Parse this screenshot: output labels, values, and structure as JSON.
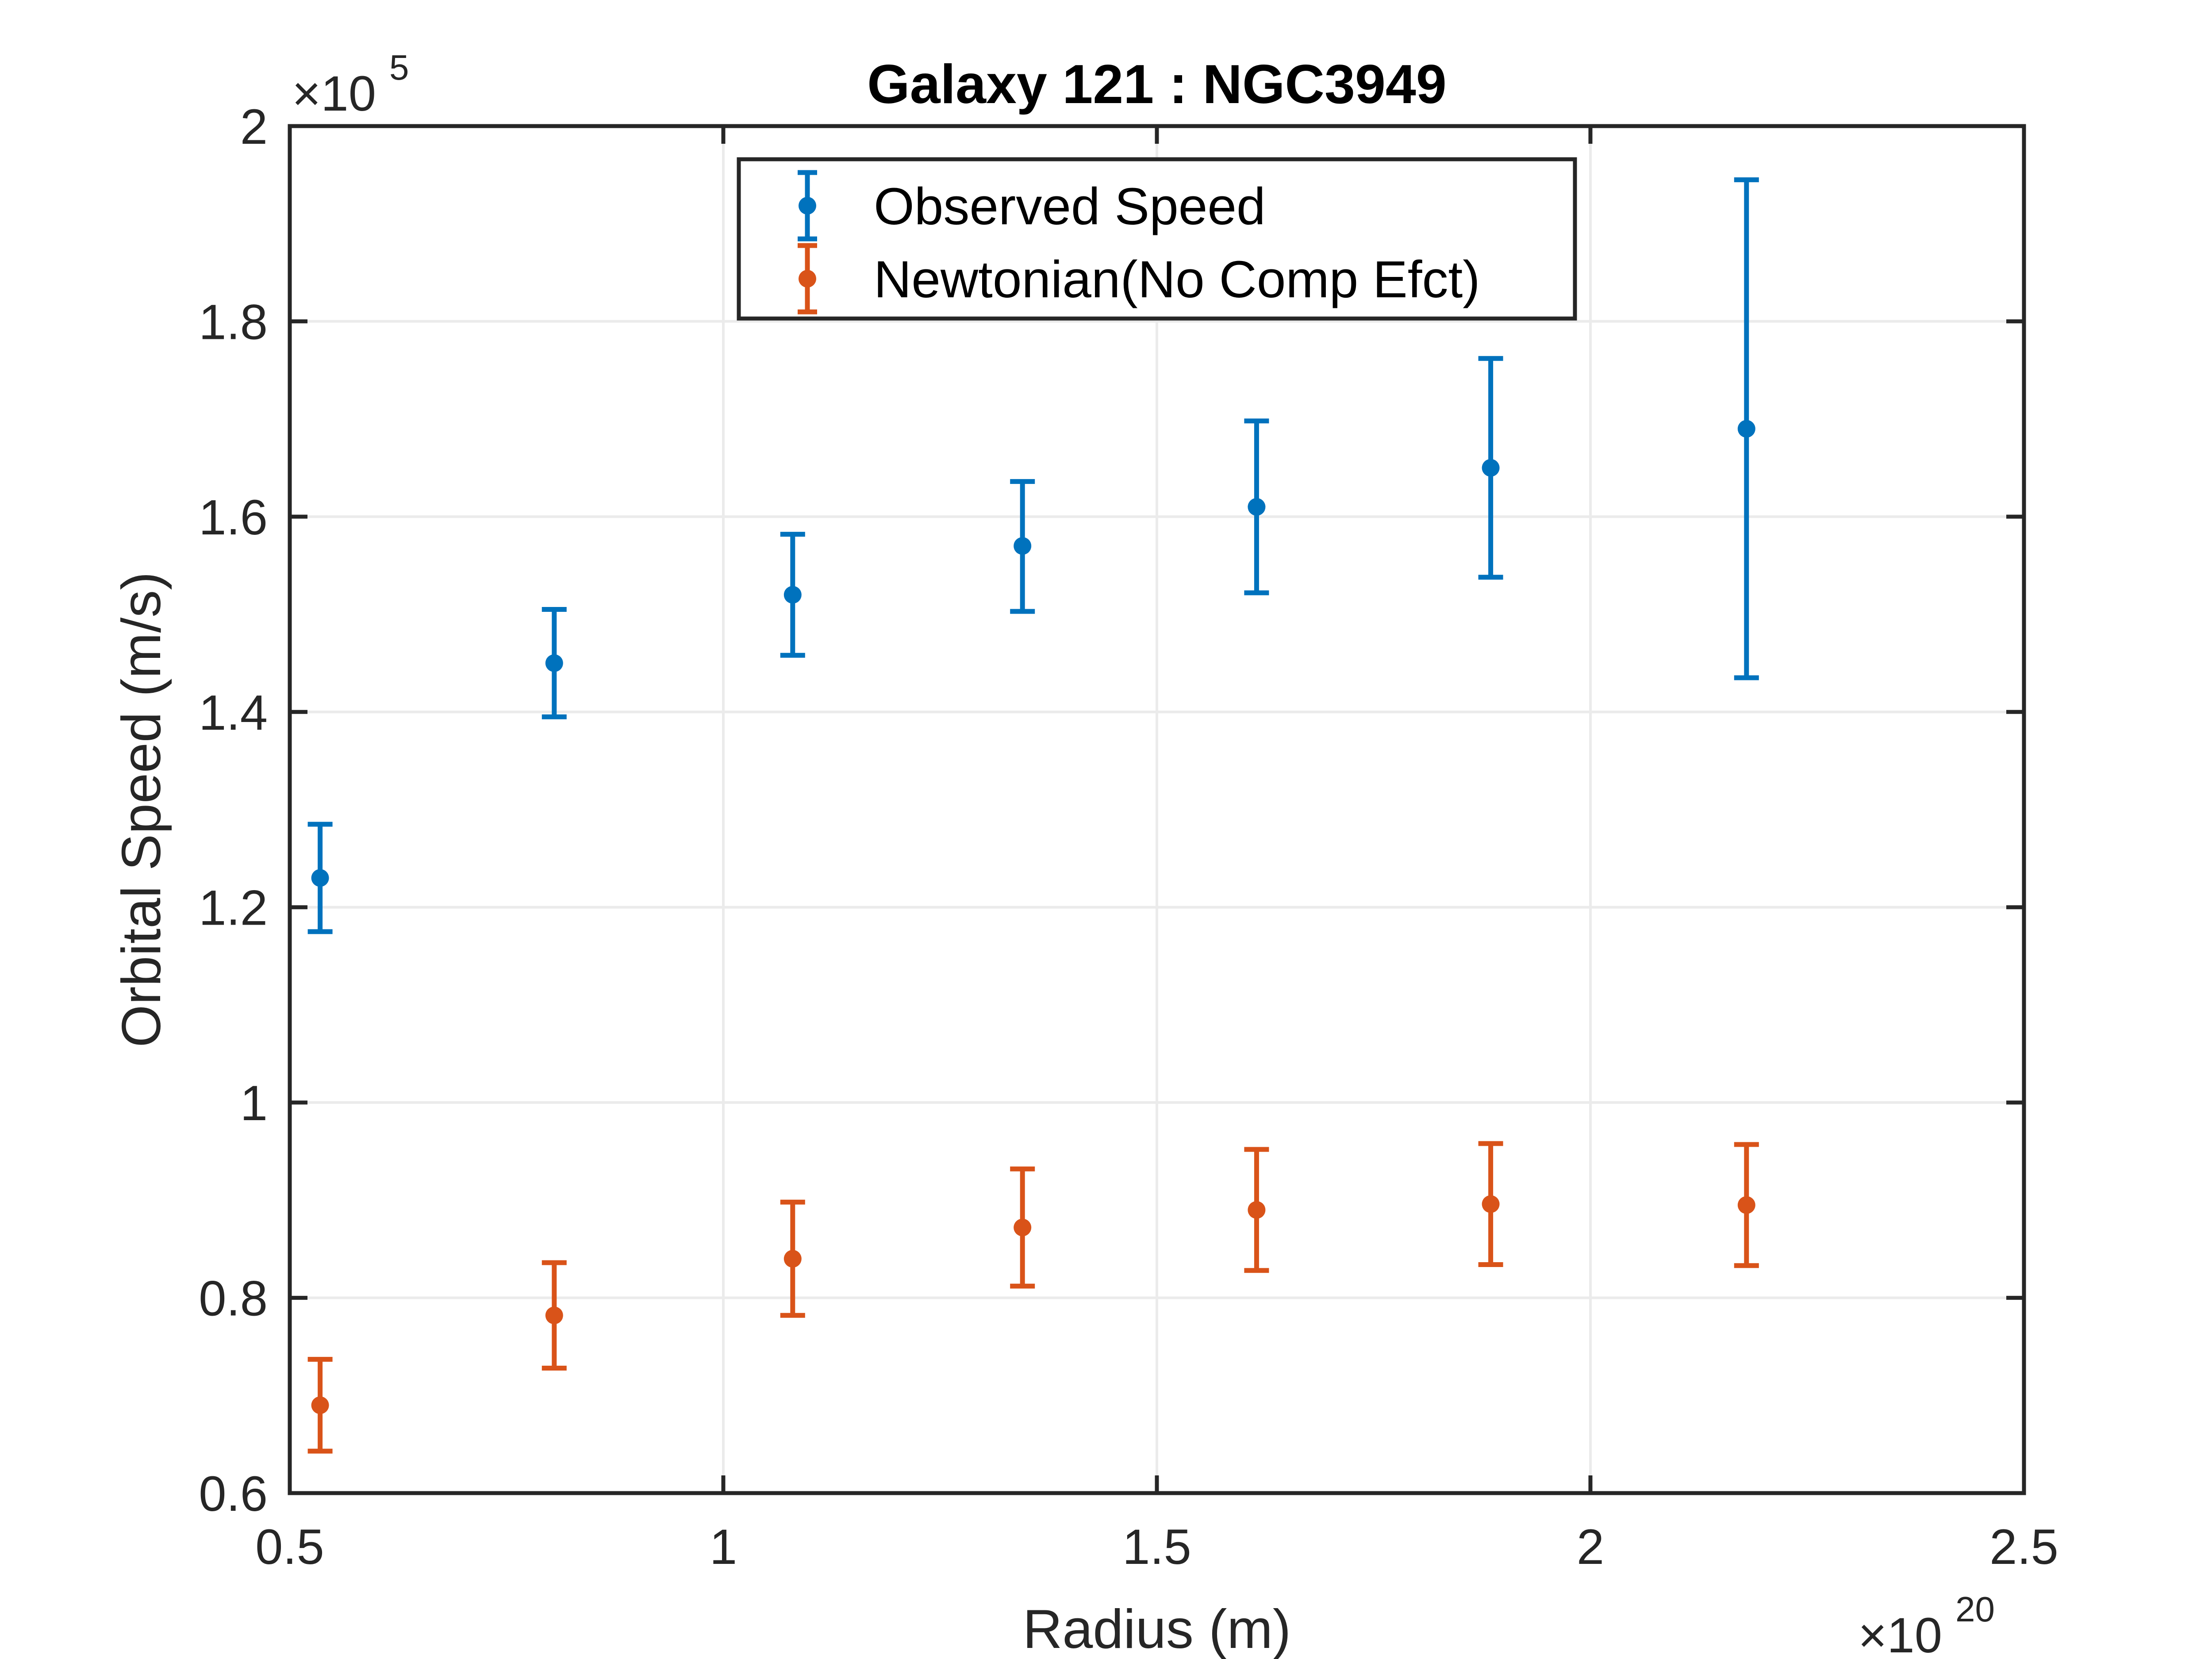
{
  "chart_data": {
    "type": "scatter",
    "title": "Galaxy 121 : NGC3949",
    "xlabel": "Radius (m)",
    "ylabel": "Orbital Speed (m/s)",
    "x_multiplier": {
      "base": "×10",
      "exp": "20"
    },
    "y_multiplier": {
      "base": "×10",
      "exp": "5"
    },
    "xlim": [
      0.5,
      2.5
    ],
    "ylim": [
      0.6,
      2.0
    ],
    "xticks": [
      0.5,
      1,
      1.5,
      2,
      2.5
    ],
    "xtick_labels": [
      "0.5",
      "1",
      "1.5",
      "2",
      "2.5"
    ],
    "yticks": [
      0.6,
      0.8,
      1.0,
      1.2,
      1.4,
      1.6,
      1.8,
      2.0
    ],
    "ytick_labels": [
      "0.6",
      "0.8",
      "1",
      "1.2",
      "1.4",
      "1.6",
      "1.8",
      "2"
    ],
    "grid": true,
    "legend_position": "top-center",
    "x": [
      0.535,
      0.805,
      1.08,
      1.345,
      1.615,
      1.885,
      2.18
    ],
    "series": [
      {
        "name": "Observed Speed",
        "color": "#0072BD",
        "values": [
          1.23,
          1.45,
          1.52,
          1.57,
          1.61,
          1.65,
          1.69
        ],
        "err_low": [
          1.175,
          1.395,
          1.458,
          1.503,
          1.522,
          1.538,
          1.435
        ],
        "err_high": [
          1.285,
          1.505,
          1.582,
          1.636,
          1.698,
          1.762,
          1.945
        ]
      },
      {
        "name": "Newtonian(No Comp Efct)",
        "color": "#D95319",
        "values": [
          0.69,
          0.782,
          0.84,
          0.872,
          0.89,
          0.896,
          0.895
        ],
        "err_low": [
          0.643,
          0.728,
          0.782,
          0.812,
          0.828,
          0.834,
          0.833
        ],
        "err_high": [
          0.737,
          0.836,
          0.898,
          0.932,
          0.952,
          0.958,
          0.957
        ]
      }
    ]
  }
}
